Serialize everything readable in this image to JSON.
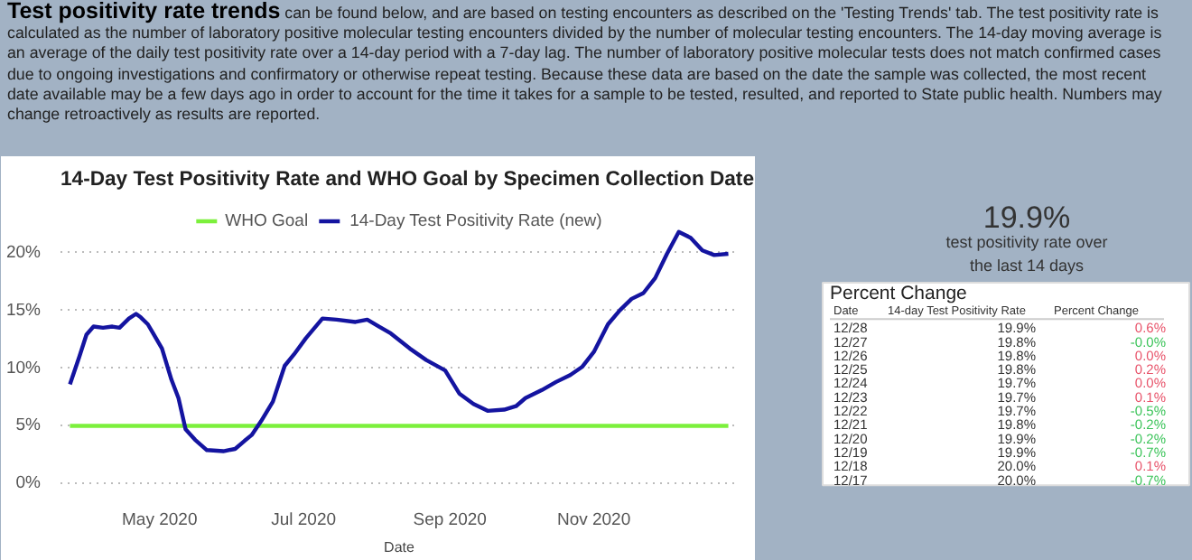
{
  "chart_data": [
    {
      "type": "line",
      "title": "14-Day Test Positivity Rate and WHO Goal by Specimen Collection Date",
      "xlabel": "Date",
      "annotations": [
        "Test positivity rate trends",
        "can be found below, and are based on testing encounters as described on the 'Testing Trends' tab.  The test positivity rate is calculated as the number of laboratory positive molecular testing encounters divided by the number of molecular testing encounters.  The 14-day moving average is an average of the daily test positivity rate over a 14-day period with a 7-day lag.  The number of laboratory positive molecular tests does not match confirmed cases due to ongoing investigations and confirmatory or otherwise repeat testing.  Because these data are based on the date the sample was collected, the most recent date available may be a few days ago in order to account for the time it takes for a sample to be tested, resulted, and reported to State public health.  Numbers may change retroactively as results are reported."
      ],
      "series": [
        {
          "name": "WHO Goal",
          "color": "#7cf03c",
          "x": [
            "2020-03-24",
            "2020-12-28"
          ],
          "values": [
            5,
            5
          ]
        },
        {
          "name": "14-Day Test Positivity Rate (new)",
          "color": "#1414a0",
          "x": [
            "2020-03-24",
            "2020-03-28",
            "2020-03-31",
            "2020-04-03",
            "2020-04-07",
            "2020-04-11",
            "2020-04-14",
            "2020-04-18",
            "2020-04-21",
            "2020-04-23",
            "2020-04-26",
            "2020-04-28",
            "2020-05-02",
            "2020-05-06",
            "2020-05-09",
            "2020-05-12",
            "2020-05-16",
            "2020-05-21",
            "2020-05-28",
            "2020-06-02",
            "2020-06-06",
            "2020-06-09",
            "2020-06-13",
            "2020-06-18",
            "2020-06-23",
            "2020-06-27",
            "2020-07-02",
            "2020-07-09",
            "2020-07-15",
            "2020-07-23",
            "2020-07-28",
            "2020-08-02",
            "2020-08-07",
            "2020-08-15",
            "2020-08-22",
            "2020-08-30",
            "2020-09-05",
            "2020-09-11",
            "2020-09-17",
            "2020-09-24",
            "2020-09-29",
            "2020-10-03",
            "2020-10-10",
            "2020-10-16",
            "2020-10-22",
            "2020-10-27",
            "2020-11-01",
            "2020-11-07",
            "2020-11-12",
            "2020-11-17",
            "2020-11-22",
            "2020-11-27",
            "2020-12-02",
            "2020-12-07",
            "2020-12-12",
            "2020-12-17",
            "2020-12-22",
            "2020-12-28"
          ],
          "values": [
            8.6,
            11.0,
            12.9,
            13.6,
            13.5,
            13.6,
            13.5,
            14.3,
            14.7,
            14.4,
            13.8,
            13.1,
            11.7,
            9.0,
            7.4,
            4.7,
            3.8,
            2.9,
            2.8,
            3.0,
            3.7,
            4.2,
            5.4,
            7.1,
            10.2,
            11.2,
            12.6,
            14.3,
            14.2,
            14.0,
            14.2,
            13.6,
            13.0,
            11.7,
            10.7,
            9.8,
            7.8,
            6.9,
            6.3,
            6.4,
            6.7,
            7.4,
            8.1,
            8.8,
            9.4,
            10.1,
            11.4,
            13.8,
            15.0,
            16.0,
            16.5,
            17.8,
            19.9,
            21.8,
            21.3,
            20.2,
            19.8,
            19.9
          ]
        }
      ],
      "xlim": [
        "2020-03-20",
        "2021-01-01"
      ],
      "xticks": [
        {
          "value": "2020-05-01",
          "label": "May 2020"
        },
        {
          "value": "2020-07-01",
          "label": "Jul 2020"
        },
        {
          "value": "2020-09-01",
          "label": "Sep 2020"
        },
        {
          "value": "2020-11-01",
          "label": "Nov 2020"
        }
      ],
      "ylim": [
        -0.6,
        24.6
      ],
      "yticks": [
        {
          "value": 0,
          "label": "0%"
        },
        {
          "value": 5,
          "label": "5%"
        },
        {
          "value": 10,
          "label": "10%"
        },
        {
          "value": 15,
          "label": "15%"
        },
        {
          "value": 20,
          "label": "20%"
        }
      ],
      "grid": "y",
      "legend": "top",
      "marker": "none",
      "line_style": "solid"
    },
    {
      "type": "other",
      "title": "Percent Change",
      "xlabel": "Date",
      "annotations": [
        "19.9%",
        "test positivity rate over\nthe last 14 days"
      ],
      "categories": [
        "12/28",
        "12/27",
        "12/26",
        "12/25",
        "12/24",
        "12/23",
        "12/22",
        "12/21",
        "12/20",
        "12/19",
        "12/18",
        "12/17"
      ],
      "series": [
        {
          "name": "14-day Test Positivity Rate",
          "values": [
            19.9,
            19.8,
            19.8,
            19.8,
            19.7,
            19.7,
            19.7,
            19.8,
            19.9,
            19.9,
            20.0,
            20.0
          ],
          "value_labels": [
            "19.9%",
            "19.8%",
            "19.8%",
            "19.8%",
            "19.7%",
            "19.7%",
            "19.7%",
            "19.8%",
            "19.9%",
            "19.9%",
            "20.0%",
            "20.0%"
          ]
        },
        {
          "name": "Percent Change",
          "colors": [
            "#e8536a",
            "#3cc45a",
            "#e8536a",
            "#e8536a",
            "#e8536a",
            "#e8536a",
            "#3cc45a",
            "#3cc45a",
            "#3cc45a",
            "#3cc45a",
            "#e8536a",
            "#3cc45a"
          ],
          "values": [
            0.6,
            -0.0,
            0.0,
            0.2,
            0.0,
            0.1,
            -0.5,
            -0.2,
            -0.2,
            -0.7,
            0.1,
            -0.7
          ],
          "value_labels": [
            "0.6%",
            "-0.0%",
            "0.0%",
            "0.2%",
            "0.0%",
            "0.1%",
            "-0.5%",
            "-0.2%",
            "-0.2%",
            "-0.7%",
            "0.1%",
            "-0.7%"
          ]
        }
      ]
    }
  ]
}
